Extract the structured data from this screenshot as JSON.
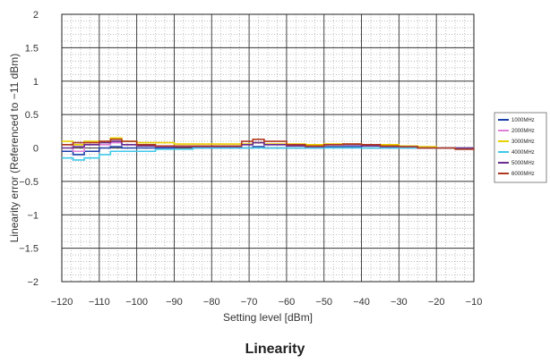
{
  "caption": "Linearity",
  "chart_data": {
    "type": "line",
    "title": "",
    "xlabel": "Setting level [dBm]",
    "ylabel": "Linearity error (Referenced to −11 dBm)",
    "xlim": [
      -120,
      -10
    ],
    "ylim": [
      -2,
      2
    ],
    "x_ticks": [
      -120,
      -110,
      -100,
      -90,
      -80,
      -70,
      -60,
      -50,
      -40,
      -30,
      -20,
      -10
    ],
    "y_ticks": [
      2,
      1.5,
      1,
      0.5,
      0,
      -0.5,
      -1,
      -1.5,
      -2
    ],
    "x_tick_labels": [
      "−120",
      "−110",
      "−100",
      "−90",
      "−80",
      "−70",
      "−60",
      "−50",
      "−40",
      "−30",
      "−20",
      "−10"
    ],
    "y_tick_labels": [
      "2",
      "1.5",
      "1",
      "0.5",
      "0",
      "−0.5",
      "−1",
      "−1.5",
      "−2"
    ],
    "grid": true,
    "legend_position": "right",
    "x": [
      -120,
      -117,
      -114,
      -110,
      -107,
      -104,
      -100,
      -95,
      -90,
      -85,
      -80,
      -75,
      -72,
      -69,
      -66,
      -60,
      -55,
      -50,
      -45,
      -40,
      -35,
      -30,
      -25,
      -20,
      -15,
      -10
    ],
    "series": [
      {
        "name": "1000MHz",
        "color": "#1a3fa8",
        "values": [
          -0.05,
          -0.1,
          -0.05,
          0.0,
          0.02,
          0.0,
          0.0,
          0.0,
          0.02,
          0.0,
          0.0,
          0.0,
          0.0,
          0.02,
          0.0,
          0.0,
          0.0,
          0.02,
          0.02,
          0.0,
          0.0,
          0.0,
          0.0,
          0.0,
          0.0,
          0.0
        ]
      },
      {
        "name": "2000MHz",
        "color": "#e080d8",
        "values": [
          0.05,
          -0.05,
          0.05,
          0.05,
          0.08,
          0.05,
          0.03,
          0.02,
          0.02,
          0.03,
          0.03,
          0.03,
          0.05,
          0.08,
          0.05,
          0.03,
          0.03,
          0.05,
          0.05,
          0.03,
          0.03,
          0.0,
          0.0,
          0.0,
          0.0,
          0.0
        ]
      },
      {
        "name": "3000MHz",
        "color": "#e8d000",
        "values": [
          0.1,
          0.05,
          0.1,
          0.1,
          0.15,
          0.1,
          0.08,
          0.08,
          0.06,
          0.06,
          0.06,
          0.06,
          0.06,
          0.08,
          0.06,
          0.06,
          0.05,
          0.06,
          0.06,
          0.05,
          0.05,
          0.03,
          0.02,
          0.0,
          0.0,
          0.0
        ]
      },
      {
        "name": "4000MHz",
        "color": "#40c8e8",
        "values": [
          -0.15,
          -0.18,
          -0.15,
          -0.1,
          -0.05,
          -0.05,
          -0.05,
          -0.02,
          -0.02,
          0.0,
          0.0,
          0.0,
          0.0,
          0.0,
          0.0,
          0.0,
          0.0,
          0.0,
          0.0,
          0.0,
          0.0,
          0.0,
          0.0,
          0.0,
          0.0,
          0.0
        ]
      },
      {
        "name": "5000MHz",
        "color": "#6a2c8e",
        "values": [
          0.0,
          0.02,
          0.05,
          0.08,
          0.1,
          0.05,
          0.03,
          0.02,
          0.02,
          0.02,
          0.02,
          0.02,
          0.05,
          0.08,
          0.05,
          0.03,
          0.02,
          0.05,
          0.05,
          0.03,
          0.02,
          0.02,
          0.0,
          0.0,
          0.0,
          0.0
        ]
      },
      {
        "name": "6000MHz",
        "color": "#b03820",
        "values": [
          0.05,
          0.08,
          0.08,
          0.1,
          0.13,
          0.1,
          0.05,
          0.03,
          0.03,
          0.03,
          0.03,
          0.03,
          0.1,
          0.13,
          0.1,
          0.05,
          0.03,
          0.05,
          0.06,
          0.05,
          0.03,
          0.02,
          0.0,
          0.0,
          -0.02,
          0.0
        ]
      }
    ]
  }
}
